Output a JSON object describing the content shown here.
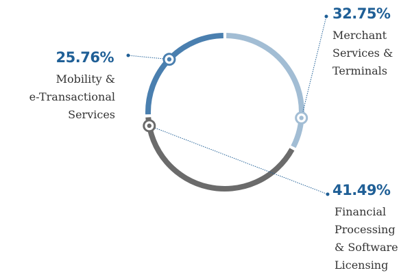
{
  "chart_data": {
    "type": "pie",
    "variant": "donut",
    "title": "",
    "series": [
      {
        "name": "Merchant Services & Terminals",
        "value": 32.75,
        "value_label": "32.75%",
        "label_lines": [
          "Merchant",
          "Services &",
          "Terminals"
        ],
        "color": "#a2bdd4"
      },
      {
        "name": "Financial Processing & Software Licensing",
        "value": 41.49,
        "value_label": "41.49%",
        "label_lines": [
          "Financial",
          "Processing",
          "& Software",
          "Licensing"
        ],
        "color": "#6b6b6b"
      },
      {
        "name": "Mobility & e-Transactional Services",
        "value": 25.76,
        "value_label": "25.76%",
        "label_lines": [
          "Mobility &",
          "e-Transactional",
          "Services"
        ],
        "color": "#4a7faf"
      }
    ],
    "label_color": "#1f5f96",
    "text_color": "#333333",
    "legend": "none"
  }
}
